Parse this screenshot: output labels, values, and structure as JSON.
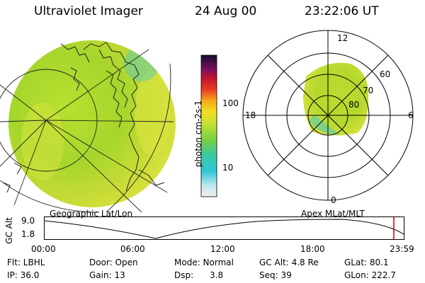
{
  "header": {
    "title": "Ultraviolet Imager",
    "date": "24 Aug 00",
    "time": "23:22:06 UT"
  },
  "colorbar": {
    "label_html": "photon cm⁻²s⁻¹",
    "unit_label": "photon cm-2s-1",
    "ticks": [
      "100",
      "10"
    ],
    "scale": "log"
  },
  "polar": {
    "mlt_labels": {
      "top": "12",
      "bottom": "0",
      "left": "18",
      "right": "6"
    },
    "lat_labels": [
      "60",
      "70",
      "80"
    ]
  },
  "captions": {
    "left": "Geographic Lat/Lon",
    "right": "Apex MLat/MLT"
  },
  "timeline": {
    "axis_label": "GC Alt",
    "y_ticks": [
      "9.0",
      "1.8"
    ],
    "x_ticks": [
      "00:00",
      "06:00",
      "12:00",
      "18:00",
      "23:59"
    ],
    "current_time_color": "#cc0000"
  },
  "status": {
    "flt": "Flt: LBHL",
    "door": "Door: Open",
    "mode": "Mode: Normal",
    "gcalt": "GC Alt: 4.8 Re",
    "glat": "GLat:  80.1",
    "ip": "IP: 36.0",
    "gain": "Gain: 13",
    "dsp": "Dsp:      3.8",
    "seq": "Seq: 39",
    "glon": "GLon: 222.7"
  },
  "colors": {
    "image_green": "#a4d82a",
    "image_yellow": "#d8e43a",
    "image_cyan": "#40c8a8"
  }
}
